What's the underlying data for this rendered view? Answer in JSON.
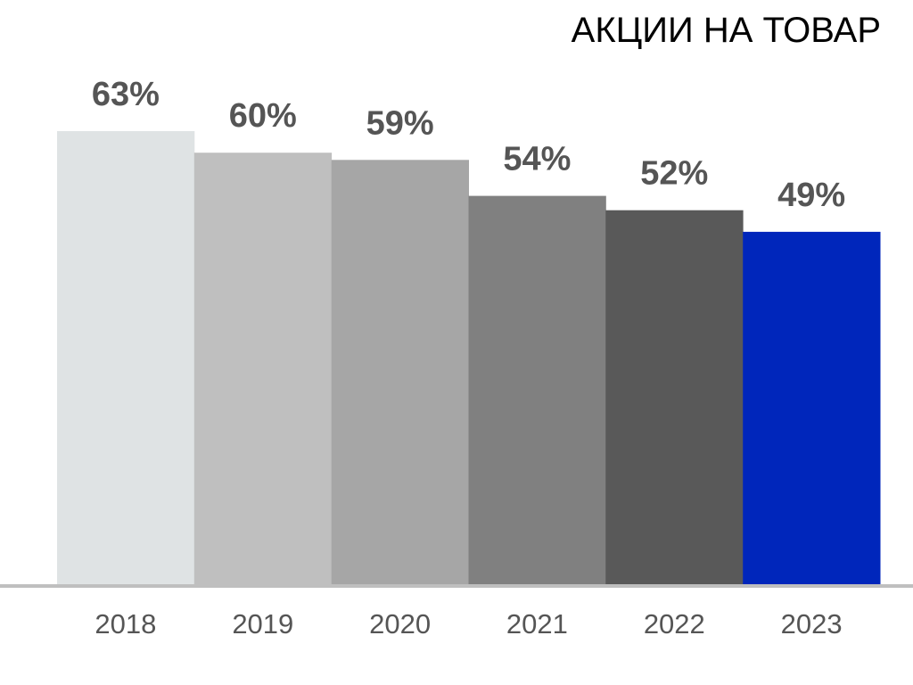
{
  "chart_data": {
    "type": "bar",
    "title": "АКЦИИ НА ТОВАР",
    "xlabel": "",
    "ylabel": "",
    "categories": [
      "2018",
      "2019",
      "2020",
      "2021",
      "2022",
      "2023"
    ],
    "values": [
      63,
      60,
      59,
      54,
      52,
      49
    ],
    "value_labels": [
      "63%",
      "60%",
      "59%",
      "54%",
      "52%",
      "49%"
    ],
    "colors": [
      "#DFE3E4",
      "#BFBFBF",
      "#A6A6A6",
      "#808080",
      "#595959",
      "#0026BB"
    ],
    "axis_color": "#BFBFBF",
    "label_color": "#555555",
    "ylim": [
      0,
      63
    ],
    "grid": false,
    "legend": "none"
  }
}
